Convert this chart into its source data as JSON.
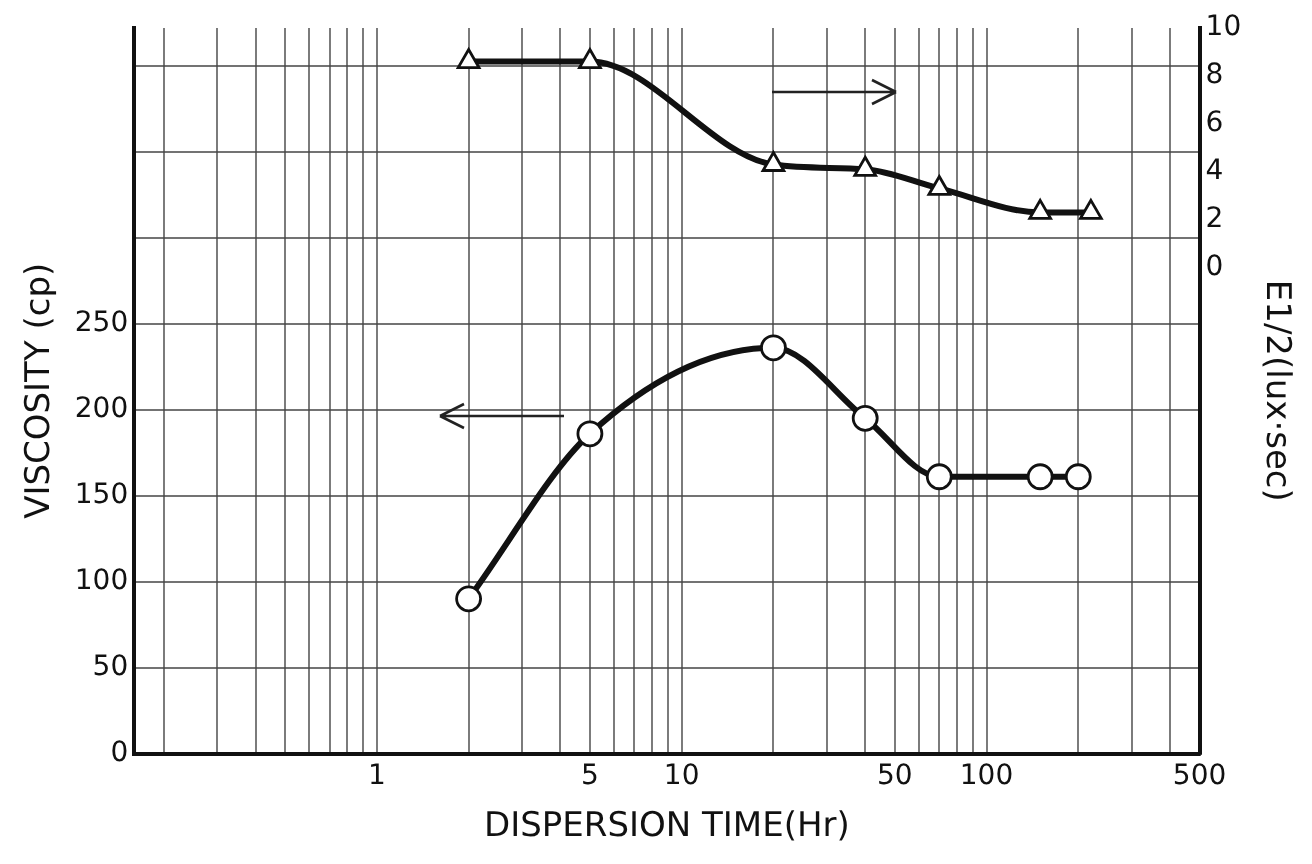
{
  "chart_data": {
    "type": "line",
    "xlabel": "DISPERSION TIME(Hr)",
    "ylabel": "VISCOSITY (cp)",
    "y2label": "E1/2(lux·sec)",
    "log": "x",
    "grid": true,
    "legend": false,
    "line_style": "solid",
    "xlim": [
      0.16,
      500
    ],
    "xticks": [
      {
        "value": 0.2,
        "label": null
      },
      {
        "value": 0.3,
        "label": null
      },
      {
        "value": 0.4,
        "label": null
      },
      {
        "value": 0.5,
        "label": null
      },
      {
        "value": 0.6,
        "label": null
      },
      {
        "value": 0.7,
        "label": null
      },
      {
        "value": 0.8,
        "label": null
      },
      {
        "value": 0.9,
        "label": null
      },
      1,
      {
        "value": 2,
        "label": null
      },
      {
        "value": 3,
        "label": null
      },
      {
        "value": 4,
        "label": null
      },
      5,
      {
        "value": 6,
        "label": null
      },
      {
        "value": 7,
        "label": null
      },
      {
        "value": 8,
        "label": null
      },
      {
        "value": 9,
        "label": null
      },
      10,
      {
        "value": 20,
        "label": null
      },
      {
        "value": 30,
        "label": null
      },
      {
        "value": 40,
        "label": null
      },
      50,
      {
        "value": 60,
        "label": null
      },
      {
        "value": 70,
        "label": null
      },
      {
        "value": 80,
        "label": null
      },
      {
        "value": 90,
        "label": null
      },
      100,
      {
        "value": 200,
        "label": null
      },
      {
        "value": 300,
        "label": null
      },
      {
        "value": 400,
        "label": null
      },
      500
    ],
    "ylim": [
      0,
      422
    ],
    "yticks": [
      0,
      50,
      100,
      150,
      200,
      250,
      {
        "value": 300,
        "label": null
      },
      {
        "value": 350,
        "label": null
      },
      {
        "value": 400,
        "label": null
      }
    ],
    "y2lim": [
      -20.3,
      10
    ],
    "y2ticks": [
      0,
      2,
      4,
      6,
      8,
      10
    ],
    "series": [
      {
        "color": "#111111",
        "marker": "circle",
        "x": [
          2,
          5,
          20,
          40,
          70,
          150,
          200
        ],
        "values": [
          90,
          186,
          236,
          195,
          161,
          161,
          161
        ]
      },
      {
        "color": "#111111",
        "marker": "triangle",
        "axis": "y2",
        "x": [
          2,
          5,
          20,
          40,
          70,
          150,
          220
        ],
        "values": [
          8.6,
          8.6,
          4.3,
          4.1,
          3.3,
          2.3,
          2.3
        ]
      }
    ]
  }
}
